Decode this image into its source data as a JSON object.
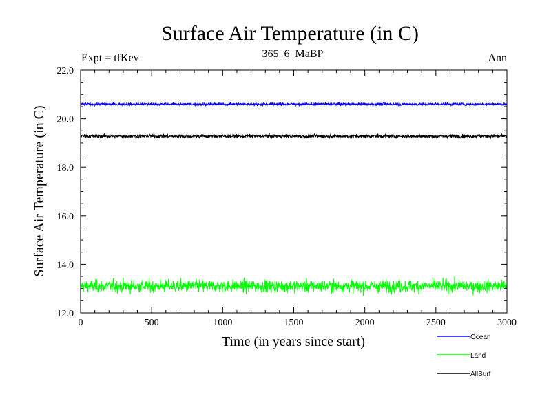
{
  "chart_data": {
    "type": "line",
    "title": "Surface Air Temperature (in C)",
    "subtitle": "365_6_MaBP",
    "left_header": "Expt = tfKev",
    "right_header": "Ann",
    "xlabel": "Time (in years since start)",
    "ylabel": "Surface Air Temperature (in C)",
    "xlim": [
      0,
      3000
    ],
    "ylim": [
      12.0,
      22.0
    ],
    "x_ticks": [
      0,
      500,
      1000,
      1500,
      2000,
      2500,
      3000
    ],
    "x_tick_labels": [
      "0",
      "500",
      "1000",
      "1500",
      "2000",
      "2500",
      "3000"
    ],
    "y_ticks": [
      12.0,
      14.0,
      16.0,
      18.0,
      20.0,
      22.0
    ],
    "y_tick_labels": [
      "12.0",
      "14.0",
      "16.0",
      "18.0",
      "20.0",
      "22.0"
    ],
    "grid": false,
    "legend_position": "bottom-right, below plot",
    "series": [
      {
        "name": "Ocean",
        "color": "#0000ff",
        "mean": 20.6,
        "variability": 0.04
      },
      {
        "name": "Land",
        "color": "#00ff00",
        "mean": 13.1,
        "variability": 0.18
      },
      {
        "name": "AllSurf",
        "color": "#000000",
        "mean": 19.28,
        "variability": 0.05
      }
    ]
  }
}
